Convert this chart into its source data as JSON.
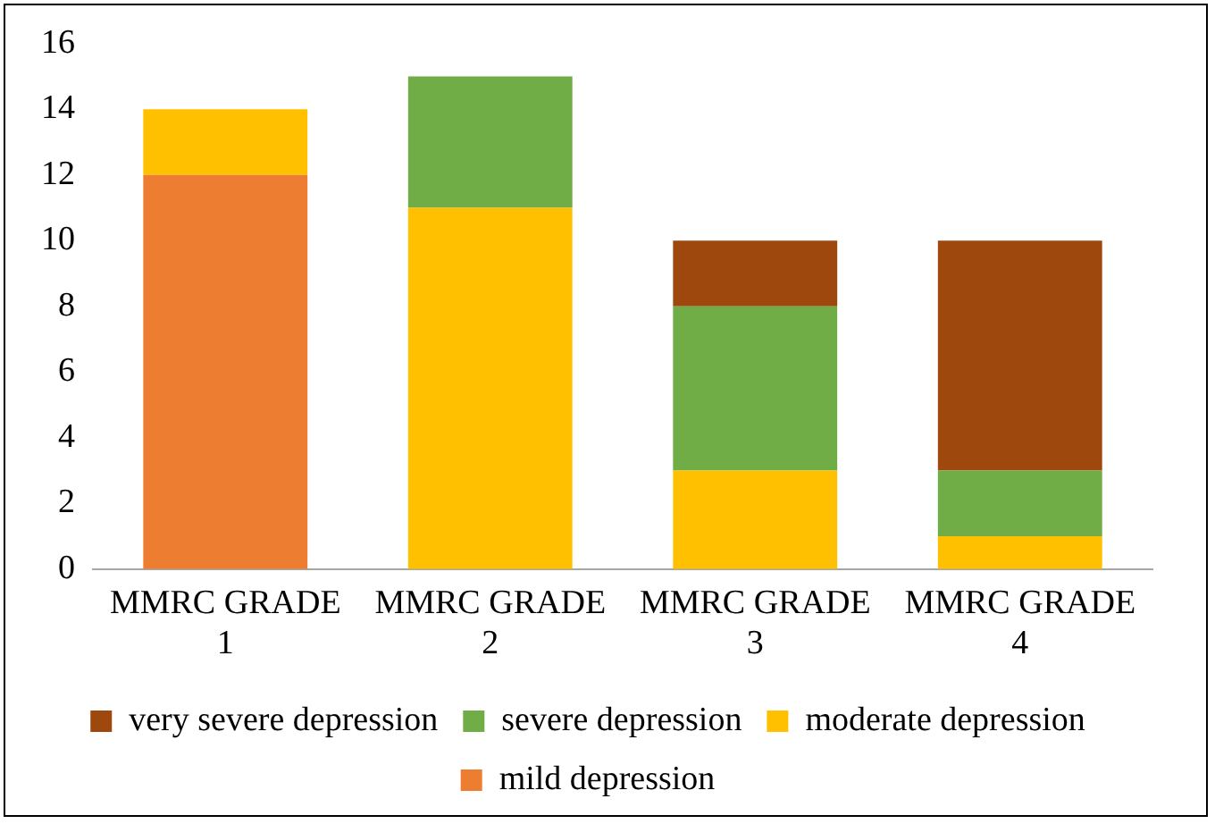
{
  "chart_data": {
    "type": "bar",
    "stacked": true,
    "categories": [
      "MMRC GRADE 1",
      "MMRC GRADE 2",
      "MMRC GRADE 3",
      "MMRC GRADE 4"
    ],
    "series": [
      {
        "name": "mild depression",
        "color": "#ed7d31",
        "values": [
          12,
          0,
          0,
          0
        ]
      },
      {
        "name": "moderate depression",
        "color": "#ffc000",
        "values": [
          2,
          11,
          3,
          1
        ]
      },
      {
        "name": "severe depression",
        "color": "#70ad47",
        "values": [
          0,
          4,
          5,
          2
        ]
      },
      {
        "name": "very severe depression",
        "color": "#9e480e",
        "values": [
          0,
          0,
          2,
          7
        ]
      }
    ],
    "ylim": [
      0,
      16
    ],
    "yticks": [
      0,
      2,
      4,
      6,
      8,
      10,
      12,
      14,
      16
    ],
    "grid": false,
    "legend": "bottom"
  }
}
